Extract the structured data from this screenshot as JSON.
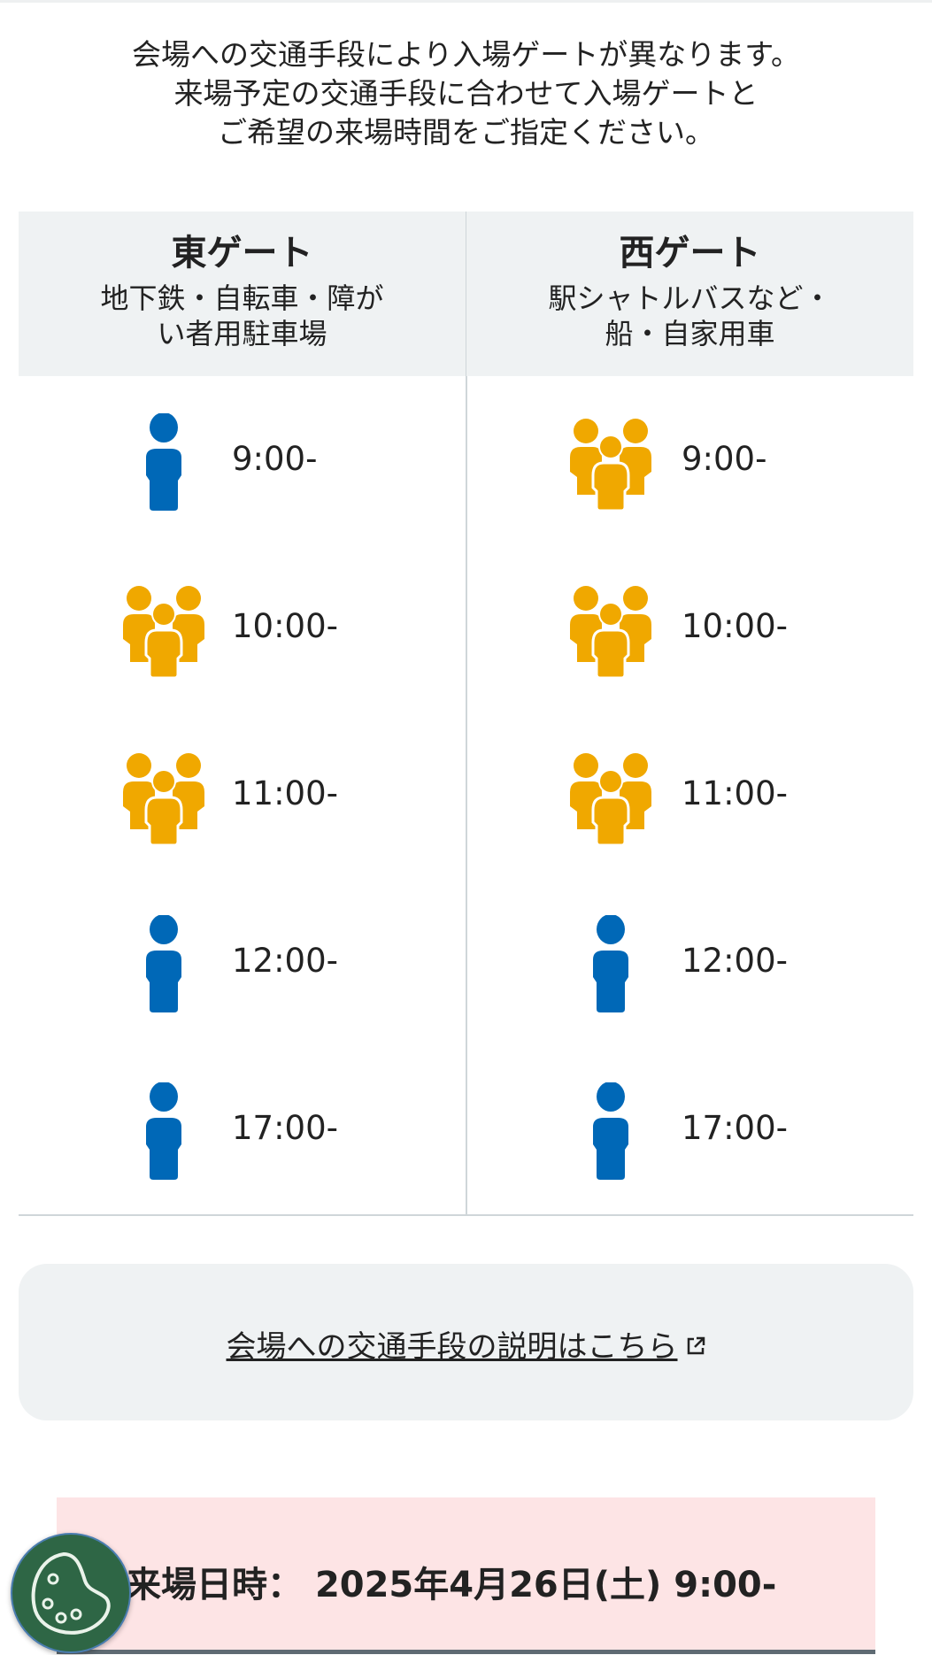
{
  "intro": {
    "lines": [
      "会場への交通手段により入場ゲートが異なります。",
      "来場予定の交通手段に合わせて入場ゲートと",
      "ご希望の来場時間をご指定ください。"
    ]
  },
  "colors": {
    "single": "#0068b7",
    "group": "#f0a800"
  },
  "gates": [
    {
      "title": "東ゲート",
      "subtitle_lines": [
        "地下鉄・自転車・障が",
        "い者用駐車場"
      ],
      "slots": [
        {
          "time": "9:00-",
          "icon": "person-icon"
        },
        {
          "time": "10:00-",
          "icon": "group-icon"
        },
        {
          "time": "11:00-",
          "icon": "group-icon"
        },
        {
          "time": "12:00-",
          "icon": "person-icon"
        },
        {
          "time": "17:00-",
          "icon": "person-icon"
        }
      ]
    },
    {
      "title": "西ゲート",
      "subtitle_lines": [
        "駅シャトルバスなど・",
        "船・自家用車"
      ],
      "slots": [
        {
          "time": "9:00-",
          "icon": "group-icon"
        },
        {
          "time": "10:00-",
          "icon": "group-icon"
        },
        {
          "time": "11:00-",
          "icon": "group-icon"
        },
        {
          "time": "12:00-",
          "icon": "person-icon"
        },
        {
          "time": "17:00-",
          "icon": "person-icon"
        }
      ]
    }
  ],
  "link": {
    "label": "会場への交通手段の説明はこちら",
    "icon": "external-link-icon"
  },
  "visit": {
    "label": "来場日時：",
    "value": "2025年4月26日(土)  9:00-"
  },
  "cookie_button": {
    "icon": "cookie-icon"
  }
}
